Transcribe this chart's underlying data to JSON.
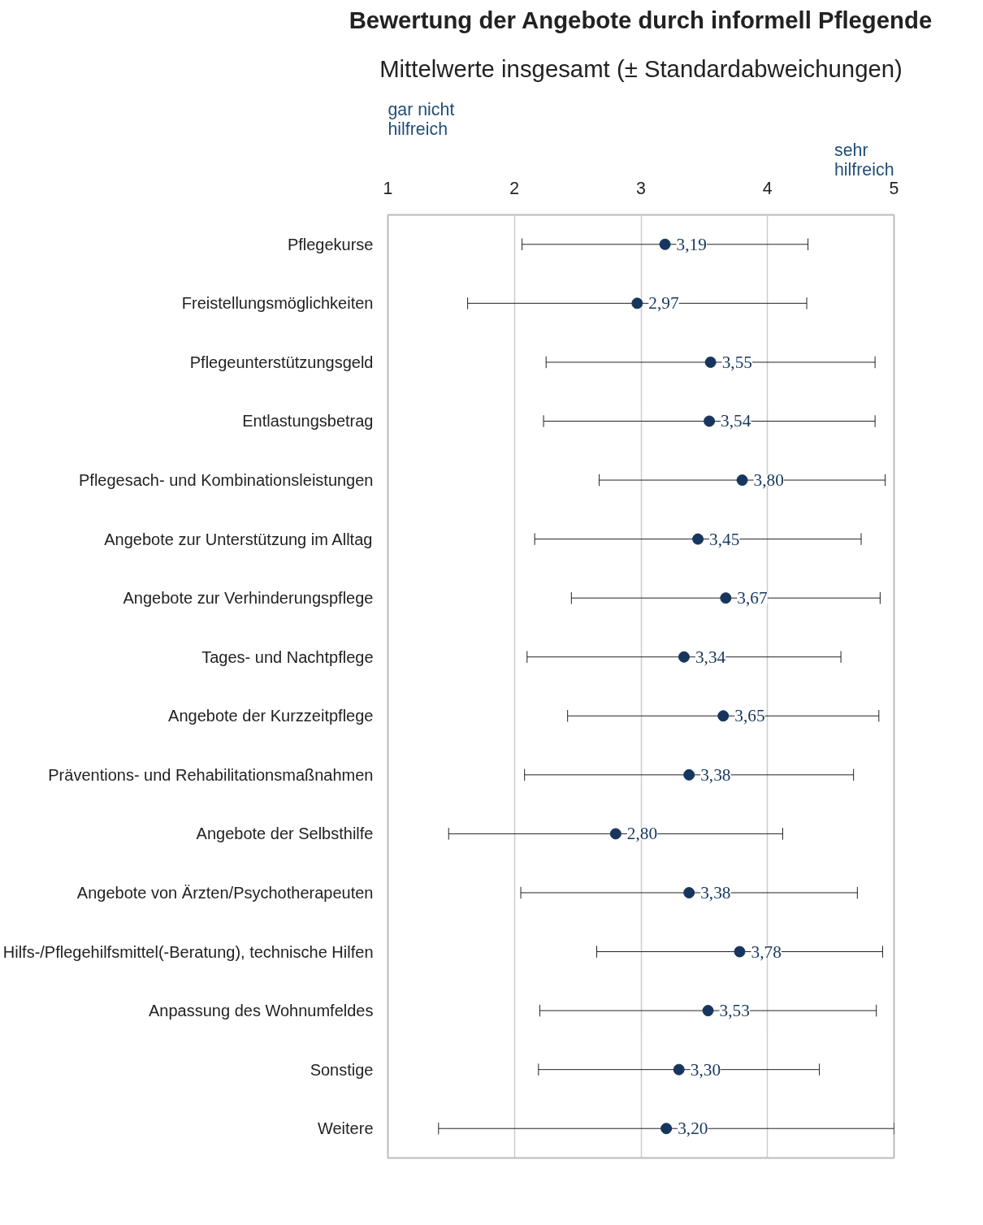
{
  "chart_data": {
    "type": "scatter",
    "title": "Bewertung der Angebote durch informell Pflegende",
    "subtitle": "Mittelwerte insgesamt (± Standardabweichungen)",
    "annotations": [
      "gar nicht\nhilfreich",
      "sehr\nhilfreich"
    ],
    "categories": [
      "Pflegekurse",
      "Freistellungsmöglichkeiten",
      "Pflegeunterstützungsgeld",
      "Entlastungsbetrag",
      "Pflegesach- und Kombinationsleistungen",
      "Angebote zur Unterstützung im Alltag",
      "Angebote zur Verhinderungspflege",
      "Tages- und Nachtpflege",
      "Angebote der Kurzzeitpflege",
      "Präventions- und Rehabilitationsmaßnahmen",
      "Angebote der Selbsthilfe",
      "Angebote von Ärzten/Psychotherapeuten",
      "Hilfs-/Pflegehilfsmittel(-Beratung), technische Hilfen",
      "Anpassung des Wohnumfeldes",
      "Sonstige",
      "Weitere"
    ],
    "orientation": "horizontal",
    "series": [
      {
        "color": "#17365d",
        "values": [
          3.19,
          2.97,
          3.55,
          3.54,
          3.8,
          3.45,
          3.67,
          3.34,
          3.65,
          3.38,
          2.8,
          3.38,
          3.78,
          3.53,
          3.3,
          3.2
        ],
        "errors": [
          1.13,
          1.34,
          1.3,
          1.31,
          1.13,
          1.29,
          1.22,
          1.24,
          1.23,
          1.3,
          1.32,
          1.33,
          1.13,
          1.33,
          1.11,
          1.8
        ],
        "value_labels": [
          "3,19",
          "2,97",
          "3,55",
          "3,54",
          "3,80",
          "3,45",
          "3,67",
          "3,34",
          "3,65",
          "3,38",
          "2,80",
          "3,38",
          "3,78",
          "3,53",
          "3,30",
          "3,20"
        ]
      }
    ],
    "xlim": [
      1,
      5
    ],
    "xticks": [
      1,
      2,
      3,
      4,
      5
    ],
    "grid": "x",
    "marker": "circle"
  }
}
